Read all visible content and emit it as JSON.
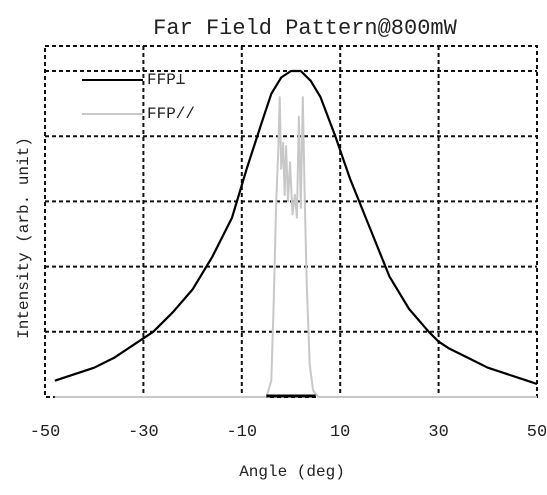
{
  "chart_data": {
    "type": "line",
    "title": "Far Field Pattern@800mW",
    "xlabel": "Angle (deg)",
    "ylabel": "Intensity (arb. unit)",
    "xlim": [
      -50,
      50
    ],
    "ylim": [
      0,
      1.0
    ],
    "x_ticks": [
      -50,
      -30,
      -10,
      10,
      30,
      50
    ],
    "x_tick_labels": [
      "-50",
      "-30",
      "-10",
      "10",
      "30",
      "50"
    ],
    "y_gridlines": [
      0.2,
      0.4,
      0.6,
      0.8,
      1.0
    ],
    "grid": "dotted",
    "legend_position": "top-left",
    "series": [
      {
        "name": "FFP⊥",
        "color": "#000000",
        "x": [
          -48,
          -44,
          -40,
          -36,
          -32,
          -28,
          -24,
          -20,
          -16,
          -12,
          -9,
          -6,
          -4,
          -2,
          0,
          2,
          4,
          6,
          9,
          12,
          16,
          20,
          24,
          28,
          30,
          32,
          36,
          40,
          44,
          48,
          50
        ],
        "y": [
          0.05,
          0.07,
          0.09,
          0.12,
          0.16,
          0.2,
          0.26,
          0.33,
          0.43,
          0.55,
          0.7,
          0.84,
          0.93,
          0.98,
          1.0,
          1.0,
          0.97,
          0.92,
          0.8,
          0.67,
          0.52,
          0.37,
          0.27,
          0.2,
          0.17,
          0.15,
          0.12,
          0.09,
          0.07,
          0.05,
          0.04
        ]
      },
      {
        "name": "FFP//",
        "color": "#c8c8c8",
        "x": [
          -48,
          -5,
          -4,
          -3.5,
          -3,
          -2.6,
          -2.3,
          -2,
          -1.6,
          -1.3,
          -1,
          -0.6,
          -0.2,
          0.3,
          0.8,
          1.2,
          1.6,
          2,
          2.4,
          2.8,
          3.2,
          3.8,
          4.5,
          5.5,
          50
        ],
        "y": [
          0,
          0,
          0.05,
          0.3,
          0.6,
          0.75,
          0.92,
          0.7,
          0.78,
          0.62,
          0.77,
          0.6,
          0.72,
          0.56,
          0.62,
          0.55,
          0.86,
          0.58,
          0.92,
          0.6,
          0.35,
          0.1,
          0.02,
          0,
          0
        ]
      }
    ],
    "annotations": [
      {
        "type": "bar-marker",
        "x_from": -5,
        "x_to": 5,
        "y": 0,
        "color": "#000000"
      }
    ]
  }
}
